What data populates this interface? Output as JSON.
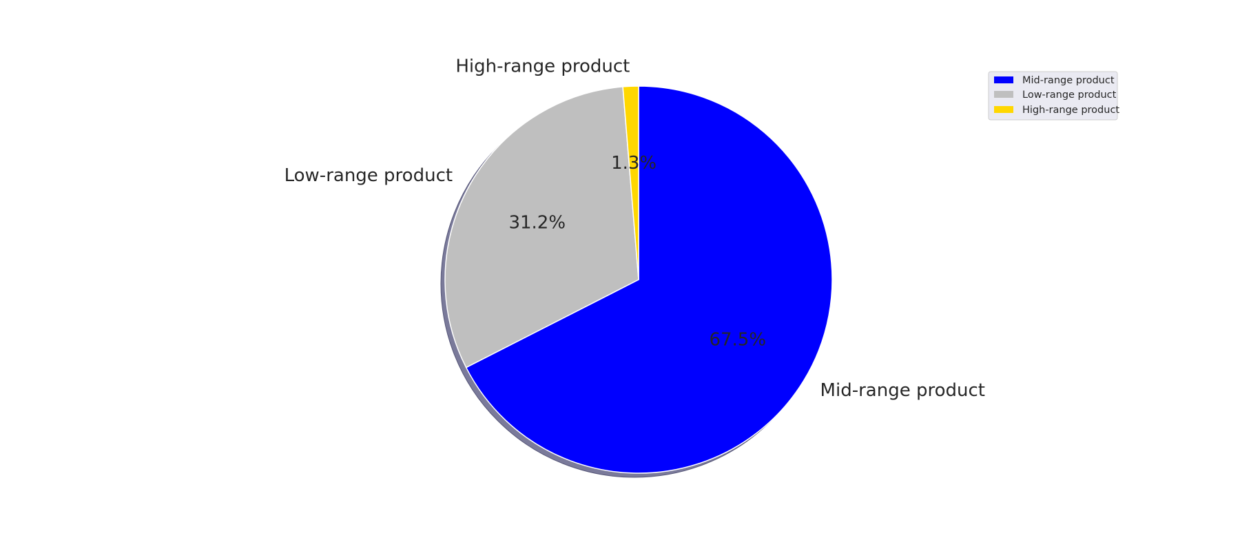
{
  "chart_data": {
    "type": "pie",
    "start_angle_deg": 90,
    "direction": "clockwise",
    "shadow": true,
    "legend_position": "top-right",
    "slices": [
      {
        "label": "Mid-range product",
        "value": 67.5,
        "pct_label": "67.5%",
        "color": "#0000ff"
      },
      {
        "label": "Low-range product",
        "value": 31.2,
        "pct_label": "31.2%",
        "color": "#bfbfbf"
      },
      {
        "label": "High-range product",
        "value": 1.3,
        "pct_label": "1.3%",
        "color": "#ffd700"
      }
    ],
    "legend": [
      {
        "label": "Mid-range product",
        "color": "#0000ff"
      },
      {
        "label": "Low-range product",
        "color": "#bfbfbf"
      },
      {
        "label": "High-range product",
        "color": "#ffd700"
      }
    ]
  }
}
